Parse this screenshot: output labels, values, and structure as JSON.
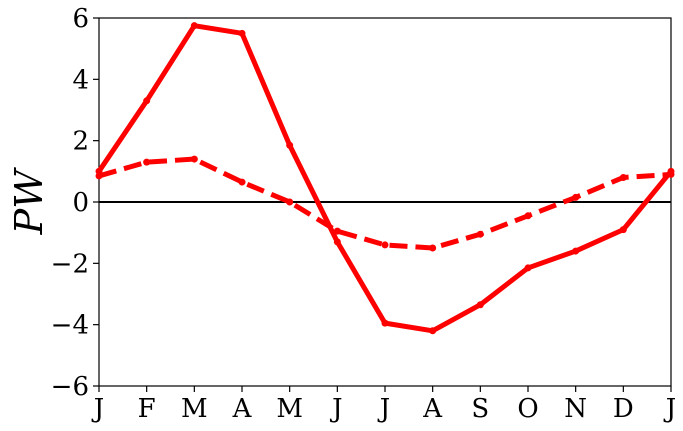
{
  "chart_data": {
    "type": "line",
    "title": "",
    "xlabel": "",
    "ylabel": "PW",
    "categories": [
      "J",
      "F",
      "M",
      "A",
      "M",
      "J",
      "J",
      "A",
      "S",
      "O",
      "N",
      "D",
      "J"
    ],
    "ylim": [
      -6,
      6
    ],
    "yticks": [
      -6,
      -4,
      -2,
      0,
      2,
      4,
      6
    ],
    "ytick_labels": [
      "−6",
      "−4",
      "−2",
      "0",
      "2",
      "4",
      "6"
    ],
    "grid": false,
    "zero_line": true,
    "series": [
      {
        "style": "solid",
        "color": "#ff0000",
        "values": [
          1.0,
          3.3,
          5.75,
          5.5,
          1.85,
          -1.3,
          -3.95,
          -4.2,
          -3.35,
          -2.15,
          -1.6,
          -0.9,
          1.0
        ]
      },
      {
        "style": "dashed",
        "color": "#ff0000",
        "values": [
          0.85,
          1.3,
          1.4,
          0.65,
          0.0,
          -0.95,
          -1.4,
          -1.5,
          -1.05,
          -0.45,
          0.15,
          0.8,
          0.9
        ]
      }
    ]
  }
}
